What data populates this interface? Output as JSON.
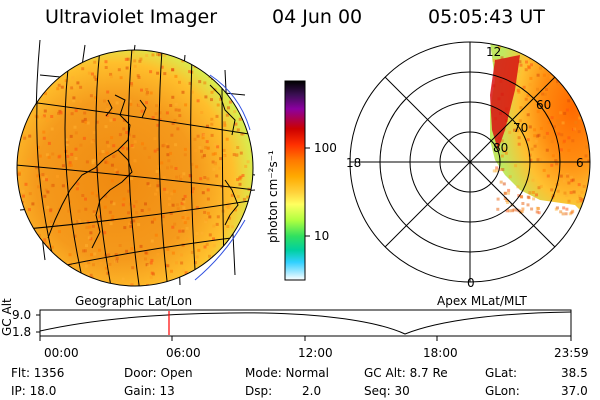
{
  "header": {
    "title": "Ultraviolet Imager",
    "date": "04 Jun 00",
    "time": "05:05:43 UT"
  },
  "colorbar": {
    "label": "photon cm⁻²s⁻¹",
    "tick_labels": [
      "100",
      "10"
    ],
    "stops": [
      "#000000",
      "#3c0f55",
      "#8b00a0",
      "#cc0000",
      "#ff3000",
      "#ff7a00",
      "#ffaa00",
      "#ffd23c",
      "#ffff60",
      "#b0ff40",
      "#30e060",
      "#00d0a0",
      "#30d0ff",
      "#a0e8ff",
      "#ffffff"
    ]
  },
  "left_map": {
    "caption": "Geographic Lat/Lon"
  },
  "right_map": {
    "caption": "Apex MLat/MLT",
    "mlt_labels": [
      "12",
      "18",
      "6",
      "0"
    ],
    "mlat_labels": [
      "60",
      "70",
      "80"
    ]
  },
  "timeline": {
    "axis_title": "GC Alt",
    "y_ticks": [
      "9.0",
      "1.8"
    ],
    "x_ticks": [
      "00:00",
      "06:00",
      "12:00",
      "18:00",
      "23:59"
    ],
    "marker_color": "#ff0000"
  },
  "info": {
    "flt": "Flt: 1356",
    "ip": "IP: 18.0",
    "door": "Door: Open",
    "gain": "Gain: 13",
    "mode": "Mode: Normal",
    "dsp_label": "Dsp:",
    "dsp_value": "2.0",
    "gcalt": "GC Alt: 8.7 Re",
    "seq": "Seq: 30",
    "glat_label": "GLat:",
    "glat_value": "38.5",
    "glon_label": "GLon:",
    "glon_value": "37.0"
  }
}
